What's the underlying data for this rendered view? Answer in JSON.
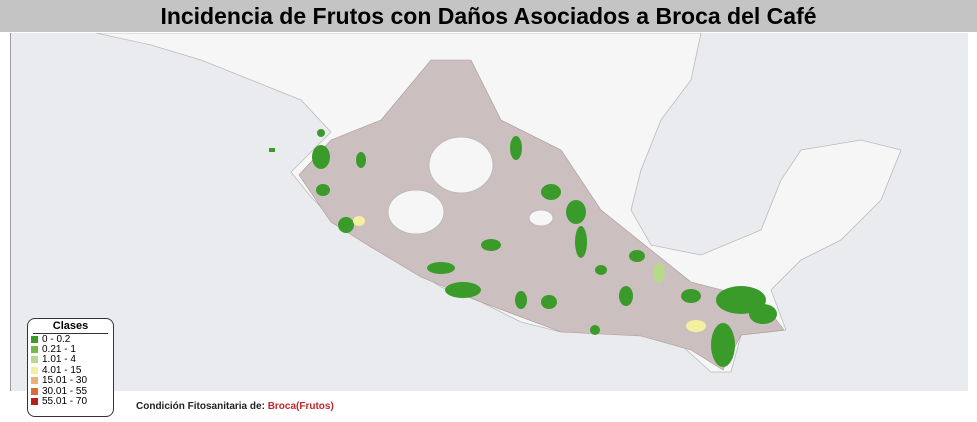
{
  "title": "Incidencia de Frutos con Daños Asociados a Broca del Café",
  "legend": {
    "title": "Clases",
    "items": [
      {
        "label": "0 - 0.2",
        "color": "#3a9a2a"
      },
      {
        "label": "0.21 - 1",
        "color": "#7ab648"
      },
      {
        "label": "1.01 - 4",
        "color": "#b9d98a"
      },
      {
        "label": "4.01 - 15",
        "color": "#f4f0a0"
      },
      {
        "label": "15.01 - 30",
        "color": "#e8b07a"
      },
      {
        "label": "30.01 - 55",
        "color": "#d86a3e"
      },
      {
        "label": "55.01 - 70",
        "color": "#b3201e"
      }
    ]
  },
  "footer": {
    "label": "Condición Fitosanitaria de:",
    "value": "Broca(Frutos)"
  }
}
